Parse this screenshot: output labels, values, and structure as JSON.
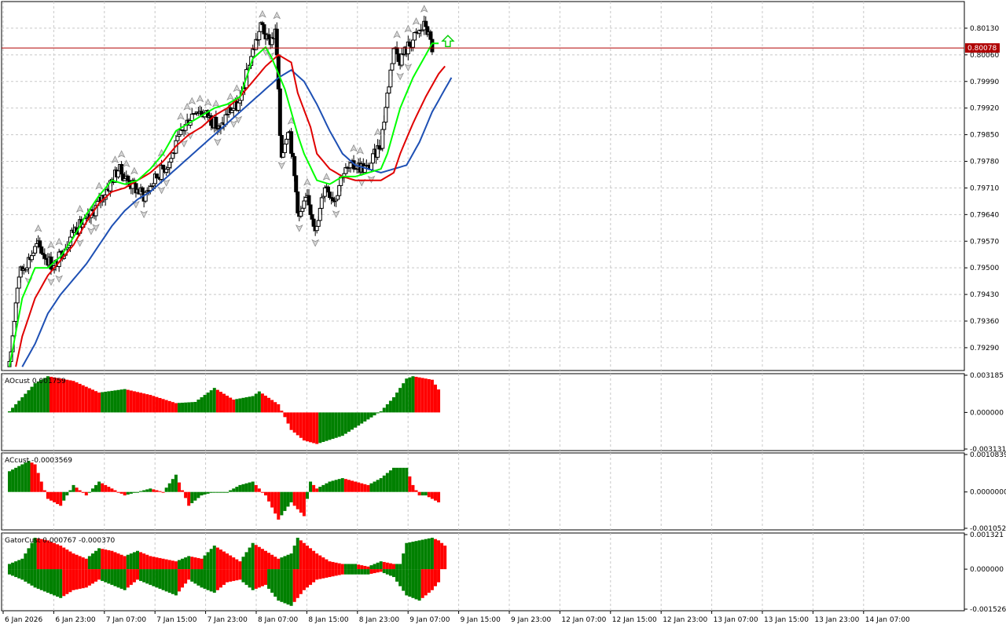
{
  "colors": {
    "bull": "#008000",
    "bear": "#ff0000",
    "lips": "#00ff00",
    "teeth": "#e00000",
    "jaw": "#1e50b4",
    "grid": "#c8c8c8",
    "price_line": "#b00000",
    "candle": "#000000",
    "fractal": "#8c8c8c",
    "signal": "#00d000"
  },
  "icons": {
    "fractal": "fractal-arrow-icon",
    "signal": "buy-signal-arrow-icon"
  },
  "current_price": "0.80078",
  "price_axis": [
    "0.80130",
    "0.80060",
    "0.79990",
    "0.79920",
    "0.79850",
    "0.79780",
    "0.79710",
    "0.79640",
    "0.79570",
    "0.79500",
    "0.79430",
    "0.79360",
    "0.79290"
  ],
  "time_axis": [
    "6 Jan 2026",
    "6 Jan 23:00",
    "7 Jan 07:00",
    "7 Jan 15:00",
    "7 Jan 23:00",
    "8 Jan 07:00",
    "8 Jan 15:00",
    "8 Jan 23:00",
    "9 Jan 07:00",
    "9 Jan 15:00",
    "9 Jan 23:00",
    "12 Jan 07:00",
    "12 Jan 15:00",
    "12 Jan 23:00",
    "13 Jan 07:00",
    "13 Jan 15:00",
    "13 Jan 23:00",
    "14 Jan 07:00"
  ],
  "ao": {
    "title": "AOcust 0.001759",
    "axis": [
      "0.003185",
      "0.000000",
      "-0.003131"
    ]
  },
  "ac": {
    "title": "ACcust -0.0003569",
    "axis": [
      "0.0010839",
      "0.0000000",
      "-0.0010521"
    ]
  },
  "gator": {
    "title": "GatorCust 0.000767 -0.000370",
    "axis": [
      "0.001321",
      "0.000000",
      "-0.001526"
    ]
  },
  "chart_data": [
    {
      "type": "candlestick",
      "title": "",
      "ylim": [
        0.7923,
        0.802
      ],
      "x_range": [
        "6 Jan 2026",
        "14 Jan 07:00"
      ],
      "close_path": [
        [
          0.0,
          0.7924
        ],
        [
          0.7,
          0.7948
        ],
        [
          2.2,
          0.7956
        ],
        [
          3.5,
          0.795
        ],
        [
          5.0,
          0.796
        ],
        [
          6.0,
          0.7962
        ],
        [
          7.5,
          0.797
        ],
        [
          8.5,
          0.7976
        ],
        [
          9.5,
          0.7972
        ],
        [
          10.5,
          0.7969
        ],
        [
          11.5,
          0.7974
        ],
        [
          12.5,
          0.7978
        ],
        [
          13.5,
          0.7986
        ],
        [
          14.5,
          0.7992
        ],
        [
          15.5,
          0.799
        ],
        [
          16.5,
          0.7986
        ],
        [
          17.0,
          0.7991
        ],
        [
          18.0,
          0.7993
        ],
        [
          18.8,
          0.8005
        ],
        [
          19.7,
          0.8014
        ],
        [
          20.2,
          0.8009
        ],
        [
          20.8,
          0.8012
        ],
        [
          21.2,
          0.7979
        ],
        [
          21.8,
          0.7988
        ],
        [
          22.6,
          0.7963
        ],
        [
          23.2,
          0.7968
        ],
        [
          24.0,
          0.796
        ],
        [
          24.6,
          0.7972
        ],
        [
          25.4,
          0.7968
        ],
        [
          26.0,
          0.7975
        ],
        [
          27.0,
          0.7977
        ],
        [
          28.0,
          0.7976
        ],
        [
          29.0,
          0.7983
        ],
        [
          30.0,
          0.8008
        ],
        [
          30.5,
          0.8005
        ],
        [
          31.5,
          0.801
        ],
        [
          32.5,
          0.8014
        ],
        [
          33.0,
          0.80078
        ]
      ],
      "lips": [
        [
          0.0,
          0.7924
        ],
        [
          1.0,
          0.7942
        ],
        [
          2.0,
          0.795
        ],
        [
          3.0,
          0.795
        ],
        [
          4.0,
          0.7953
        ],
        [
          5.0,
          0.7958
        ],
        [
          6.0,
          0.7964
        ],
        [
          7.0,
          0.7969
        ],
        [
          8.0,
          0.7973
        ],
        [
          9.0,
          0.7972
        ],
        [
          10.0,
          0.7973
        ],
        [
          11.0,
          0.7976
        ],
        [
          12.0,
          0.798
        ],
        [
          13.0,
          0.7986
        ],
        [
          14.0,
          0.7988
        ],
        [
          15.0,
          0.799
        ],
        [
          16.0,
          0.7992
        ],
        [
          17.0,
          0.7993
        ],
        [
          18.0,
          0.7995
        ],
        [
          19.0,
          0.8005
        ],
        [
          20.0,
          0.8008
        ],
        [
          20.5,
          0.8005
        ],
        [
          21.5,
          0.7997
        ],
        [
          22.5,
          0.7985
        ],
        [
          23.0,
          0.798
        ],
        [
          24.0,
          0.7973
        ],
        [
          25.0,
          0.7972
        ],
        [
          26.0,
          0.7974
        ],
        [
          27.0,
          0.7974
        ],
        [
          28.0,
          0.7975
        ],
        [
          29.0,
          0.7976
        ],
        [
          29.5,
          0.798
        ],
        [
          30.5,
          0.7992
        ],
        [
          31.5,
          0.8
        ],
        [
          32.5,
          0.8006
        ],
        [
          33.0,
          0.8009
        ],
        [
          33.5,
          0.8009
        ]
      ],
      "teeth": [
        [
          0.5,
          0.7924
        ],
        [
          1.0,
          0.7932
        ],
        [
          2.0,
          0.7942
        ],
        [
          3.0,
          0.7948
        ],
        [
          4.0,
          0.7952
        ],
        [
          5.0,
          0.7956
        ],
        [
          6.0,
          0.7962
        ],
        [
          7.0,
          0.7967
        ],
        [
          8.0,
          0.797
        ],
        [
          9.0,
          0.7971
        ],
        [
          10.0,
          0.7973
        ],
        [
          11.0,
          0.7975
        ],
        [
          12.0,
          0.7978
        ],
        [
          13.0,
          0.7982
        ],
        [
          14.0,
          0.7985
        ],
        [
          15.0,
          0.7987
        ],
        [
          16.0,
          0.799
        ],
        [
          17.0,
          0.7992
        ],
        [
          18.0,
          0.7995
        ],
        [
          19.0,
          0.7999
        ],
        [
          20.0,
          0.8003
        ],
        [
          21.0,
          0.8006
        ],
        [
          22.0,
          0.8004
        ],
        [
          22.5,
          0.7996
        ],
        [
          23.5,
          0.7987
        ],
        [
          24.0,
          0.798
        ],
        [
          25.0,
          0.7976
        ],
        [
          26.0,
          0.7974
        ],
        [
          27.0,
          0.7973
        ],
        [
          28.0,
          0.7973
        ],
        [
          29.0,
          0.7973
        ],
        [
          30.0,
          0.7975
        ],
        [
          30.5,
          0.798
        ],
        [
          31.5,
          0.7988
        ],
        [
          32.5,
          0.7995
        ],
        [
          33.5,
          0.8001
        ],
        [
          34.0,
          0.8003
        ]
      ],
      "jaw": [
        [
          1.0,
          0.7924
        ],
        [
          2.0,
          0.793
        ],
        [
          3.0,
          0.7938
        ],
        [
          4.0,
          0.7943
        ],
        [
          5.0,
          0.7947
        ],
        [
          6.0,
          0.7951
        ],
        [
          7.0,
          0.7956
        ],
        [
          8.0,
          0.7961
        ],
        [
          9.0,
          0.7965
        ],
        [
          10.0,
          0.7968
        ],
        [
          11.0,
          0.797
        ],
        [
          12.0,
          0.7973
        ],
        [
          13.0,
          0.7976
        ],
        [
          14.0,
          0.7979
        ],
        [
          15.0,
          0.7982
        ],
        [
          16.0,
          0.7985
        ],
        [
          17.0,
          0.7988
        ],
        [
          18.0,
          0.7991
        ],
        [
          19.0,
          0.7994
        ],
        [
          20.0,
          0.7997
        ],
        [
          21.0,
          0.8
        ],
        [
          22.0,
          0.8002
        ],
        [
          23.0,
          0.7999
        ],
        [
          24.0,
          0.7993
        ],
        [
          25.0,
          0.7986
        ],
        [
          26.0,
          0.798
        ],
        [
          27.0,
          0.7977
        ],
        [
          28.0,
          0.7976
        ],
        [
          29.0,
          0.7975
        ],
        [
          30.0,
          0.7976
        ],
        [
          31.0,
          0.7977
        ],
        [
          32.0,
          0.7983
        ],
        [
          33.0,
          0.7991
        ],
        [
          34.0,
          0.7997
        ],
        [
          34.5,
          0.8
        ]
      ]
    },
    {
      "type": "bar",
      "title": "AOcust 0.001759",
      "ylim": [
        -0.003131,
        0.003185
      ],
      "profile": [
        [
          0,
          0.0001
        ],
        [
          2,
          0.0025
        ],
        [
          3,
          0.0031
        ],
        [
          5,
          0.0027
        ],
        [
          7,
          0.0017
        ],
        [
          9,
          0.002
        ],
        [
          11,
          0.0015
        ],
        [
          13,
          0.0008
        ],
        [
          14.5,
          0.0009
        ],
        [
          16,
          0.0021
        ],
        [
          17.5,
          0.0011
        ],
        [
          19,
          0.0014
        ],
        [
          19.5,
          0.0018
        ],
        [
          21,
          0.0007
        ],
        [
          22,
          -0.0015
        ],
        [
          23,
          -0.0024
        ],
        [
          24,
          -0.0027
        ],
        [
          26,
          -0.002
        ],
        [
          28,
          -0.0006
        ],
        [
          29,
          0.0001
        ],
        [
          30,
          0.0013
        ],
        [
          31,
          0.0029
        ],
        [
          31.5,
          0.0031
        ],
        [
          33,
          0.0028
        ],
        [
          33.6,
          0.0018
        ]
      ],
      "colors_note": "bars green when rising, red when falling"
    },
    {
      "type": "bar",
      "title": "ACcust -0.0003569",
      "ylim": [
        -0.0010521,
        0.0010839
      ],
      "profile": [
        [
          0,
          0.0006
        ],
        [
          1.5,
          0.0009
        ],
        [
          2,
          0.0008
        ],
        [
          3,
          -0.0002
        ],
        [
          4,
          -0.0004
        ],
        [
          5,
          0.0002
        ],
        [
          6,
          -0.0001
        ],
        [
          7,
          0.0003
        ],
        [
          8,
          0.0001
        ],
        [
          9,
          -0.0001
        ],
        [
          10,
          0.0
        ],
        [
          11,
          0.0001
        ],
        [
          12,
          0.0
        ],
        [
          13,
          0.0005
        ],
        [
          14,
          -0.0004
        ],
        [
          15,
          -0.0001
        ],
        [
          16,
          0.0
        ],
        [
          17,
          0.0
        ],
        [
          18,
          0.0002
        ],
        [
          19,
          0.0003
        ],
        [
          20,
          -0.0001
        ],
        [
          21,
          -0.0008
        ],
        [
          22,
          -0.0003
        ],
        [
          23,
          -0.0007
        ],
        [
          23.5,
          0.0003
        ],
        [
          24,
          0.0001
        ],
        [
          25,
          0.0003
        ],
        [
          26,
          0.0004
        ],
        [
          27,
          0.0003
        ],
        [
          28,
          0.0002
        ],
        [
          29,
          0.0004
        ],
        [
          30,
          0.0007
        ],
        [
          31,
          0.0007
        ],
        [
          31.5,
          0.0002
        ],
        [
          32,
          -0.0001
        ],
        [
          32.5,
          -0.0001
        ],
        [
          33.5,
          -0.0003
        ]
      ],
      "colors_note": "bars green when rising, red when falling"
    },
    {
      "type": "bar",
      "title": "GatorCust 0.000767 -0.000370",
      "ylim": [
        -0.001526,
        0.001321
      ],
      "upper_profile": [
        [
          0,
          0.0002
        ],
        [
          1,
          0.0004
        ],
        [
          2,
          0.0012
        ],
        [
          3,
          0.0011
        ],
        [
          4,
          0.0009
        ],
        [
          5,
          0.0006
        ],
        [
          6,
          0.0004
        ],
        [
          7,
          0.0008
        ],
        [
          8,
          0.0007
        ],
        [
          9,
          0.0005
        ],
        [
          10,
          0.0007
        ],
        [
          11,
          0.0005
        ],
        [
          12,
          0.0004
        ],
        [
          13,
          0.0003
        ],
        [
          14,
          0.0005
        ],
        [
          15,
          0.0004
        ],
        [
          16,
          0.0009
        ],
        [
          17,
          0.0006
        ],
        [
          18,
          0.0003
        ],
        [
          19,
          0.001
        ],
        [
          20,
          0.0007
        ],
        [
          21,
          0.0004
        ],
        [
          22,
          0.0006
        ],
        [
          22.5,
          0.0012
        ],
        [
          23,
          0.001
        ],
        [
          24,
          0.0006
        ],
        [
          25,
          0.0003
        ],
        [
          26,
          0.0002
        ],
        [
          27,
          0.0002
        ],
        [
          28,
          0.0001
        ],
        [
          28.5,
          0.0002
        ],
        [
          29,
          0.0003
        ],
        [
          30,
          0.0002
        ],
        [
          30.5,
          0.0002
        ],
        [
          31,
          0.001
        ],
        [
          32,
          0.0011
        ],
        [
          33,
          0.0012
        ],
        [
          33.5,
          0.0011
        ],
        [
          34,
          0.0009
        ]
      ],
      "lower_profile": [
        [
          0,
          -0.0002
        ],
        [
          1,
          -0.0004
        ],
        [
          2,
          -0.0007
        ],
        [
          3,
          -0.0009
        ],
        [
          4,
          -0.0011
        ],
        [
          5,
          -0.0008
        ],
        [
          6,
          -0.0007
        ],
        [
          7,
          -0.0004
        ],
        [
          8,
          -0.0006
        ],
        [
          9,
          -0.0008
        ],
        [
          10,
          -0.0004
        ],
        [
          11,
          -0.0006
        ],
        [
          12,
          -0.0008
        ],
        [
          13,
          -0.001
        ],
        [
          14,
          -0.0004
        ],
        [
          15,
          -0.0007
        ],
        [
          16,
          -0.0009
        ],
        [
          17,
          -0.0005
        ],
        [
          18,
          -0.0004
        ],
        [
          19,
          -0.0008
        ],
        [
          20,
          -0.0006
        ],
        [
          21,
          -0.0012
        ],
        [
          22,
          -0.0014
        ],
        [
          23,
          -0.0008
        ],
        [
          24,
          -0.0004
        ],
        [
          25,
          -0.0003
        ],
        [
          26,
          -0.0002
        ],
        [
          27,
          -0.0002
        ],
        [
          28,
          -0.0002
        ],
        [
          29,
          -0.0001
        ],
        [
          30,
          -0.0003
        ],
        [
          31,
          -0.001
        ],
        [
          32,
          -0.0012
        ],
        [
          33,
          -0.0008
        ],
        [
          33.5,
          -0.0005
        ]
      ],
      "colors_note": "bars green when histogram grows, red when it shrinks"
    }
  ]
}
